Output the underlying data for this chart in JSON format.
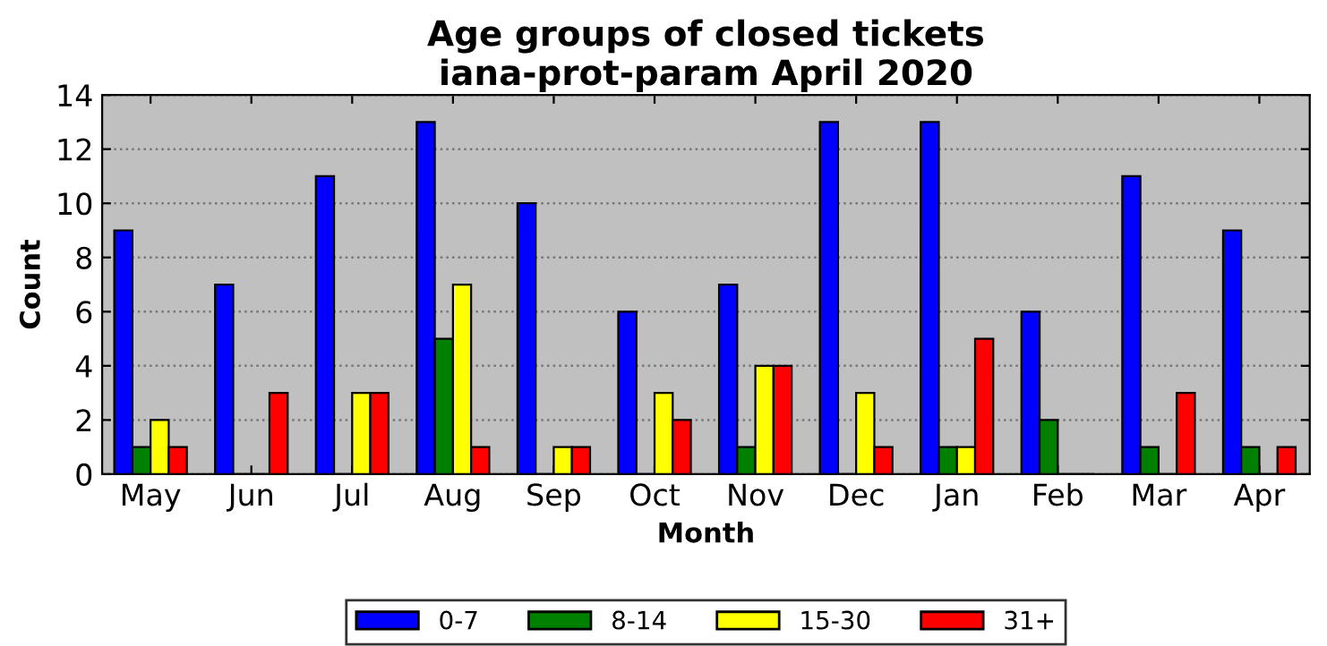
{
  "chart_data": {
    "type": "bar",
    "title": "Age groups of closed tickets\niana-prot-param April 2020",
    "xlabel": "Month",
    "ylabel": "Count",
    "categories": [
      "May",
      "Jun",
      "Jul",
      "Aug",
      "Sep",
      "Oct",
      "Nov",
      "Dec",
      "Jan",
      "Feb",
      "Mar",
      "Apr"
    ],
    "series": [
      {
        "name": "0-7",
        "color": "#0000ff",
        "values": [
          9,
          7,
          11,
          13,
          10,
          6,
          7,
          13,
          13,
          6,
          11,
          9
        ]
      },
      {
        "name": "8-14",
        "color": "#008000",
        "values": [
          1,
          0,
          0,
          5,
          0,
          0,
          1,
          0,
          1,
          2,
          1,
          1
        ]
      },
      {
        "name": "15-30",
        "color": "#ffff00",
        "values": [
          2,
          0,
          3,
          7,
          1,
          3,
          4,
          3,
          1,
          0,
          0,
          0
        ]
      },
      {
        "name": "31+",
        "color": "#ff0000",
        "values": [
          1,
          3,
          3,
          1,
          1,
          2,
          4,
          1,
          5,
          0,
          3,
          1
        ]
      }
    ],
    "ylim": [
      0,
      14
    ],
    "yticks": [
      0,
      2,
      4,
      6,
      8,
      10,
      12,
      14
    ],
    "grid": "y",
    "legend": "bottom"
  }
}
